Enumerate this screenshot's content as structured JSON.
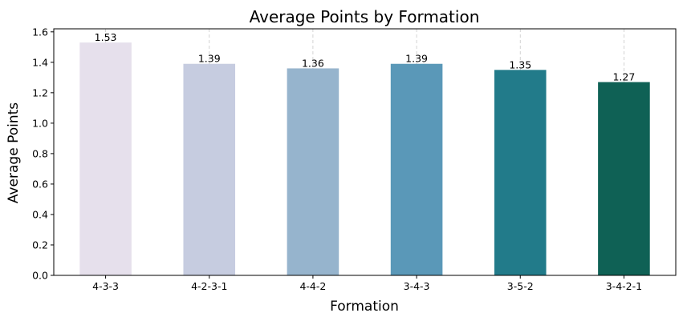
{
  "chart_data": {
    "type": "bar",
    "title": "Average Points by Formation",
    "xlabel": "Formation",
    "ylabel": "Average Points",
    "categories": [
      "4-3-3",
      "4-2-3-1",
      "4-4-2",
      "3-4-3",
      "3-5-2",
      "3-4-2-1"
    ],
    "values": [
      1.53,
      1.39,
      1.36,
      1.39,
      1.35,
      1.27
    ],
    "data_labels": [
      "1.53",
      "1.39",
      "1.36",
      "1.39",
      "1.35",
      "1.27"
    ],
    "colors": [
      "#e6e0ec",
      "#c6cce0",
      "#96b4cd",
      "#5a98b8",
      "#227b8a",
      "#0f6155"
    ],
    "ylim": [
      0,
      1.62
    ],
    "yticks": [
      0.0,
      0.2,
      0.4,
      0.6,
      0.8,
      1.0,
      1.2,
      1.4,
      1.6
    ],
    "ytick_labels": [
      "0.0",
      "0.2",
      "0.4",
      "0.6",
      "0.8",
      "1.0",
      "1.2",
      "1.4",
      "1.6"
    ],
    "grid": "vertical-dashed",
    "legend": "none"
  }
}
